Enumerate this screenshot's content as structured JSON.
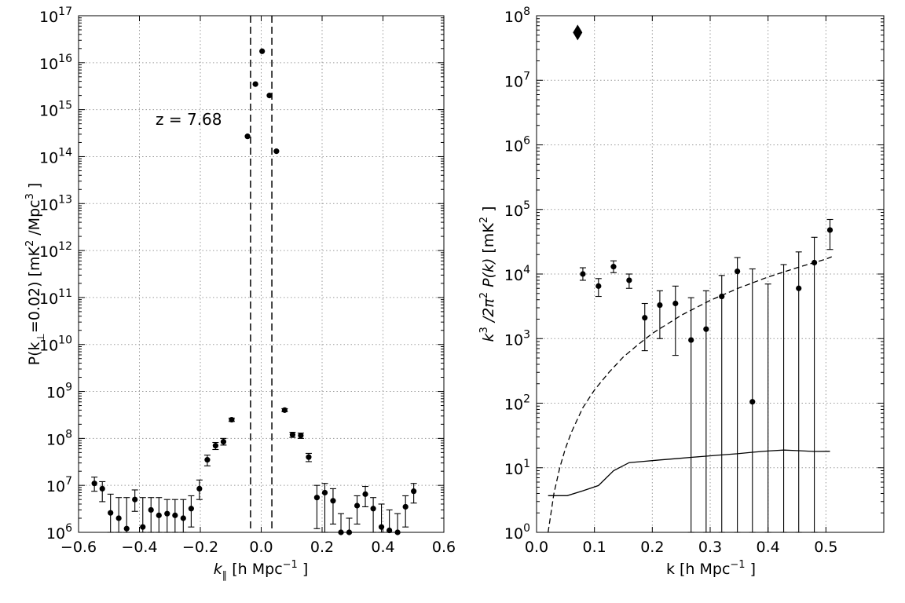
{
  "chart_data": [
    {
      "type": "scatter",
      "xlabel_main": "k",
      "xlabel_sub": "∥",
      "xlabel_units": " [h Mpc",
      "xlabel_exp": "−1",
      "xlabel_close": " ]",
      "ylabel_pre": "P(k",
      "ylabel_sub": "⊥",
      "ylabel_mid": "=0.02) [mK",
      "ylabel_exp": "2",
      "ylabel_mid2": " /Mpc",
      "ylabel_exp2": "3",
      "ylabel_close": " ]",
      "xlim": [
        -0.6,
        0.6
      ],
      "ylim_log10": [
        6,
        17
      ],
      "log_y": true,
      "grid": true,
      "x_ticks": [
        "−0.6",
        "−0.4",
        "−0.2",
        "0.0",
        "0.2",
        "0.4",
        "0.6"
      ],
      "y_tick_exps": [
        "6",
        "7",
        "8",
        "9",
        "10",
        "11",
        "12",
        "13",
        "14",
        "15",
        "16",
        "17"
      ],
      "vlines_dashed": [
        -0.035,
        0.035
      ],
      "annotation": "z = 7.68",
      "points": [
        {
          "x": -0.548,
          "y": 11000000.0,
          "lo": 7500000.0,
          "hi": 15000000.0
        },
        {
          "x": -0.522,
          "y": 8500000.0,
          "lo": 4500000.0,
          "hi": 12000000.0
        },
        {
          "x": -0.495,
          "y": 2600000.0,
          "lo": 1000000.0,
          "hi": 6500000.0
        },
        {
          "x": -0.468,
          "y": 2000000.0,
          "lo": 1000000.0,
          "hi": 5500000.0
        },
        {
          "x": -0.442,
          "y": 1200000.0,
          "lo": 1000000.0,
          "hi": 5500000.0
        },
        {
          "x": -0.415,
          "y": 5000000.0,
          "lo": 2800000.0,
          "hi": 8000000.0
        },
        {
          "x": -0.389,
          "y": 1300000.0,
          "lo": 1000000.0,
          "hi": 5500000.0
        },
        {
          "x": -0.362,
          "y": 3000000.0,
          "lo": 1000000.0,
          "hi": 5500000.0
        },
        {
          "x": -0.336,
          "y": 2300000.0,
          "lo": 1000000.0,
          "hi": 5500000.0
        },
        {
          "x": -0.309,
          "y": 2500000.0,
          "lo": 1000000.0,
          "hi": 5000000.0
        },
        {
          "x": -0.283,
          "y": 2300000.0,
          "lo": 1000000.0,
          "hi": 5000000.0
        },
        {
          "x": -0.256,
          "y": 2000000.0,
          "lo": 1000000.0,
          "hi": 5000000.0
        },
        {
          "x": -0.23,
          "y": 3200000.0,
          "lo": 1300000.0,
          "hi": 6000000.0
        },
        {
          "x": -0.203,
          "y": 8500000.0,
          "lo": 5000000.0,
          "hi": 13000000.0
        },
        {
          "x": -0.177,
          "y": 35000000.0,
          "lo": 26000000.0,
          "hi": 44000000.0
        },
        {
          "x": -0.15,
          "y": 70000000.0,
          "lo": 58000000.0,
          "hi": 82000000.0
        },
        {
          "x": -0.124,
          "y": 85000000.0,
          "lo": 72000000.0,
          "hi": 100000000.0
        },
        {
          "x": -0.097,
          "y": 250000000.0,
          "lo": 230000000.0,
          "hi": 270000000.0
        },
        {
          "x": -0.045,
          "y": 270000000000000.0
        },
        {
          "x": -0.019,
          "y": 3500000000000000.0
        },
        {
          "x": 0.003,
          "y": 1.75e+16
        },
        {
          "x": 0.027,
          "y": 2000000000000000.0
        },
        {
          "x": 0.05,
          "y": 130000000000000.0
        },
        {
          "x": 0.077,
          "y": 400000000.0,
          "lo": 370000000.0,
          "hi": 430000000.0
        },
        {
          "x": 0.103,
          "y": 120000000.0,
          "lo": 105000000.0,
          "hi": 135000000.0
        },
        {
          "x": 0.13,
          "y": 115000000.0,
          "lo": 100000000.0,
          "hi": 130000000.0
        },
        {
          "x": 0.156,
          "y": 40000000.0,
          "lo": 32000000.0,
          "hi": 48000000.0
        },
        {
          "x": 0.183,
          "y": 5500000.0,
          "lo": 1200000.0,
          "hi": 10000000.0
        },
        {
          "x": 0.209,
          "y": 7000000.0,
          "lo": 1000000.0,
          "hi": 11000000.0
        },
        {
          "x": 0.236,
          "y": 4700000.0,
          "lo": 1500000.0,
          "hi": 8500000.0
        },
        {
          "x": 0.262,
          "y": 1000000.0,
          "lo": 1000000.0,
          "hi": 2500000.0
        },
        {
          "x": 0.289,
          "y": 1000000.0,
          "lo": 1000000.0,
          "hi": 2000000.0
        },
        {
          "x": 0.315,
          "y": 3700000.0,
          "lo": 1500000.0,
          "hi": 6000000.0
        },
        {
          "x": 0.342,
          "y": 6500000.0,
          "lo": 3500000.0,
          "hi": 9500000.0
        },
        {
          "x": 0.368,
          "y": 3200000.0,
          "lo": 1000000.0,
          "hi": 5500000.0
        },
        {
          "x": 0.395,
          "y": 1300000.0,
          "lo": 1000000.0,
          "hi": 4000000.0
        },
        {
          "x": 0.421,
          "y": 1100000.0,
          "lo": 1000000.0,
          "hi": 3000000.0
        },
        {
          "x": 0.448,
          "y": 1000000.0,
          "lo": 1000000.0,
          "hi": 2500000.0
        },
        {
          "x": 0.474,
          "y": 3500000.0,
          "lo": 1300000.0,
          "hi": 6000000.0
        },
        {
          "x": 0.501,
          "y": 7500000.0,
          "lo": 4200000.0,
          "hi": 11000000.0
        }
      ]
    },
    {
      "type": "scatter",
      "xlabel": "k [h Mpc",
      "xlabel_exp": "−1",
      "xlabel_close": " ]",
      "ylabel_k": "k",
      "ylabel_k_exp": "3",
      "ylabel_div": " /2π",
      "ylabel_div_exp": "2",
      "ylabel_pk": " P(k)",
      "ylabel_units": " [mK",
      "ylabel_units_exp": "2",
      "ylabel_close": " ]",
      "xlim": [
        0.0,
        0.6
      ],
      "ylim_log10": [
        0,
        8
      ],
      "log_y": true,
      "grid": true,
      "x_ticks": [
        "0.0",
        "0.1",
        "0.2",
        "0.3",
        "0.4",
        "0.5"
      ],
      "y_tick_exps": [
        "0",
        "1",
        "2",
        "3",
        "4",
        "5",
        "6",
        "7",
        "8"
      ],
      "diamond_point": {
        "x": 0.071,
        "y": 55000000.0
      },
      "points": [
        {
          "x": 0.08,
          "y": 10000.0,
          "lo": 8000.0,
          "hi": 12500.0
        },
        {
          "x": 0.107,
          "y": 6500.0,
          "lo": 4500.0,
          "hi": 8500.0
        },
        {
          "x": 0.133,
          "y": 13000.0,
          "lo": 10500.0,
          "hi": 16000.0
        },
        {
          "x": 0.16,
          "y": 8000.0,
          "lo": 6000.0,
          "hi": 10000.0
        },
        {
          "x": 0.187,
          "y": 2100.0,
          "lo": 650,
          "hi": 3500.0
        },
        {
          "x": 0.213,
          "y": 3300.0,
          "lo": 1000.0,
          "hi": 5500.0
        },
        {
          "x": 0.24,
          "y": 3500.0,
          "lo": 550,
          "hi": 6500.0
        },
        {
          "x": 0.267,
          "y": 950,
          "lo": 1,
          "hi": 4300.0
        },
        {
          "x": 0.293,
          "y": 1400.0,
          "lo": 1,
          "hi": 5500.0
        },
        {
          "x": 0.32,
          "y": 4500.0,
          "lo": 1,
          "hi": 9500.0
        },
        {
          "x": 0.347,
          "y": 11000.0,
          "lo": 1,
          "hi": 18000.0
        },
        {
          "x": 0.373,
          "y": 105,
          "lo": 1,
          "hi": 12000.0
        },
        {
          "x": 0.4,
          "y": null,
          "lo": 1,
          "hi": 7000.0
        },
        {
          "x": 0.427,
          "y": null,
          "lo": 1,
          "hi": 14000.0
        },
        {
          "x": 0.453,
          "y": 6000.0,
          "lo": 1,
          "hi": 22000.0
        },
        {
          "x": 0.48,
          "y": 15000.0,
          "lo": 1,
          "hi": 37000.0
        },
        {
          "x": 0.507,
          "y": 48000.0,
          "lo": 24000.0,
          "hi": 70000.0
        }
      ],
      "solid_curve": [
        {
          "x": 0.02,
          "y": 3.7
        },
        {
          "x": 0.053,
          "y": 3.7
        },
        {
          "x": 0.08,
          "y": 4.4
        },
        {
          "x": 0.107,
          "y": 5.3
        },
        {
          "x": 0.133,
          "y": 9.0
        },
        {
          "x": 0.16,
          "y": 12.0
        },
        {
          "x": 0.187,
          "y": 12.6
        },
        {
          "x": 0.213,
          "y": 13.2
        },
        {
          "x": 0.24,
          "y": 13.8
        },
        {
          "x": 0.267,
          "y": 14.5
        },
        {
          "x": 0.293,
          "y": 15.1
        },
        {
          "x": 0.32,
          "y": 15.8
        },
        {
          "x": 0.347,
          "y": 16.5
        },
        {
          "x": 0.373,
          "y": 17.4
        },
        {
          "x": 0.4,
          "y": 18.2
        },
        {
          "x": 0.427,
          "y": 18.8
        },
        {
          "x": 0.453,
          "y": 18.4
        },
        {
          "x": 0.48,
          "y": 17.9
        },
        {
          "x": 0.507,
          "y": 18.0
        }
      ],
      "dashed_curve": [
        {
          "x": 0.02,
          "y": 1.0
        },
        {
          "x": 0.025,
          "y": 2.0
        },
        {
          "x": 0.03,
          "y": 4.0
        },
        {
          "x": 0.04,
          "y": 10
        },
        {
          "x": 0.05,
          "y": 20
        },
        {
          "x": 0.06,
          "y": 35
        },
        {
          "x": 0.07,
          "y": 55
        },
        {
          "x": 0.08,
          "y": 85
        },
        {
          "x": 0.1,
          "y": 160
        },
        {
          "x": 0.125,
          "y": 300
        },
        {
          "x": 0.15,
          "y": 520
        },
        {
          "x": 0.175,
          "y": 800
        },
        {
          "x": 0.2,
          "y": 1200
        },
        {
          "x": 0.25,
          "y": 2300
        },
        {
          "x": 0.3,
          "y": 3900
        },
        {
          "x": 0.35,
          "y": 6100
        },
        {
          "x": 0.4,
          "y": 9000
        },
        {
          "x": 0.45,
          "y": 12500
        },
        {
          "x": 0.5,
          "y": 17000
        },
        {
          "x": 0.51,
          "y": 18500
        }
      ]
    }
  ]
}
